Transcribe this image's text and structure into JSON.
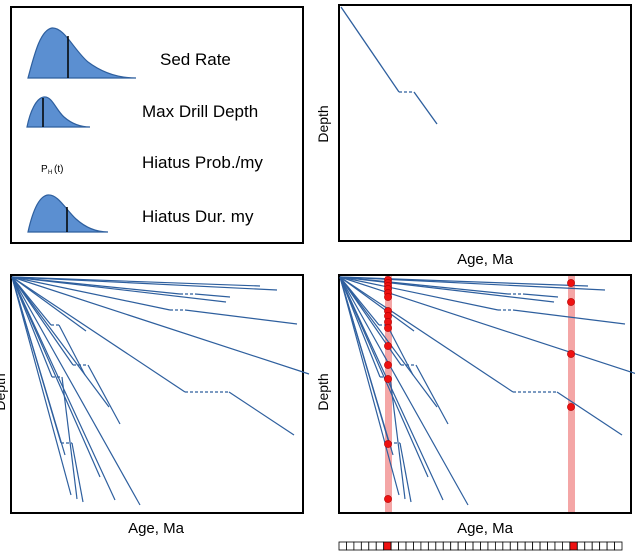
{
  "legend": {
    "sed_rate_label": "Sed Rate",
    "max_drill_label": "Max Drill Depth",
    "hiatus_prob_symbol": "P",
    "hiatus_prob_sub": "H",
    "hiatus_prob_arg": "(t)",
    "hiatus_prob_label": "Hiatus Prob./my",
    "hiatus_dur_label": "Hiatus Dur. my"
  },
  "panel_single": {
    "xlabel": "Age, Ma",
    "ylabel": "Depth"
  },
  "panel_many": {
    "xlabel": "Age, Ma",
    "ylabel": "Depth"
  },
  "panel_sampled": {
    "xlabel": "Age, Ma",
    "ylabel": "Depth"
  },
  "colors": {
    "line": "#2e5f9e",
    "dist_fill": "#5b8fd1",
    "dist_stroke": "#2e5f9e",
    "sample_band": "#f4a6a6",
    "sample_point": "#ee1111",
    "frame": "#000000"
  }
}
